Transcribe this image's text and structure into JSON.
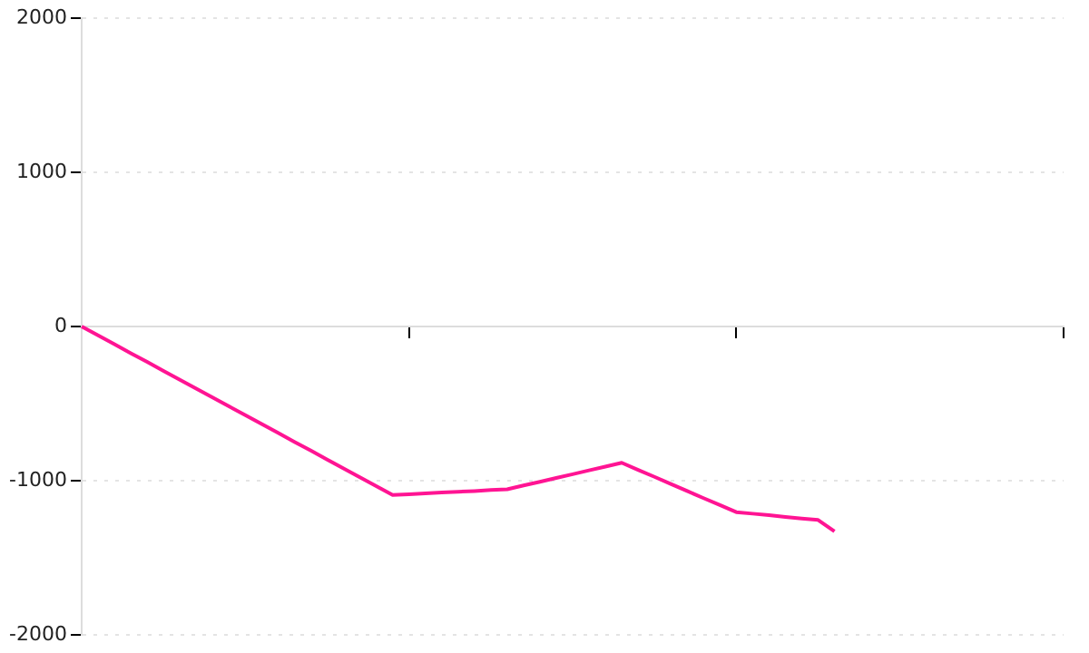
{
  "chart_data": {
    "type": "line",
    "categories": [
      null,
      null,
      null,
      null,
      null,
      null,
      null,
      null,
      null,
      null,
      null,
      null,
      null,
      null,
      null,
      null,
      null,
      null,
      null,
      null,
      null,
      null,
      null,
      null,
      null,
      null,
      null,
      null,
      null,
      null,
      null,
      null,
      null,
      null,
      null,
      null,
      null,
      null,
      null,
      null,
      null,
      null,
      null,
      null,
      null,
      null,
      null,
      null,
      null,
      null,
      null,
      null,
      null,
      null,
      null,
      null,
      null,
      null,
      null,
      null,
      null
    ],
    "series": [
      {
        "color": "#ff1493",
        "values": [
          0,
          -58,
          -115,
          -173,
          -230,
          -288,
          -345,
          -403,
          -460,
          -518,
          -575,
          -633,
          -690,
          -748,
          -805,
          -863,
          -920,
          -978,
          -1035,
          -1093,
          -1088,
          -1082,
          -1077,
          -1072,
          -1067,
          -1061,
          -1056,
          -1031,
          -1007,
          -982,
          -958,
          -933,
          -909,
          -884,
          -930,
          -975,
          -1021,
          -1067,
          -1113,
          -1158,
          -1204,
          -1214,
          -1224,
          -1235,
          -1245,
          -1255,
          -1329,
          null,
          null,
          null,
          null,
          null,
          null,
          null,
          null,
          null,
          null,
          null,
          null,
          null,
          null
        ]
      }
    ],
    "ylim": [
      -2000,
      2000
    ],
    "yticks": [
      -2000,
      -1000,
      0,
      1000,
      2000
    ],
    "tick_labels": "y",
    "grid": "y",
    "legend": false,
    "marker": "none",
    "line_style": "solid"
  }
}
